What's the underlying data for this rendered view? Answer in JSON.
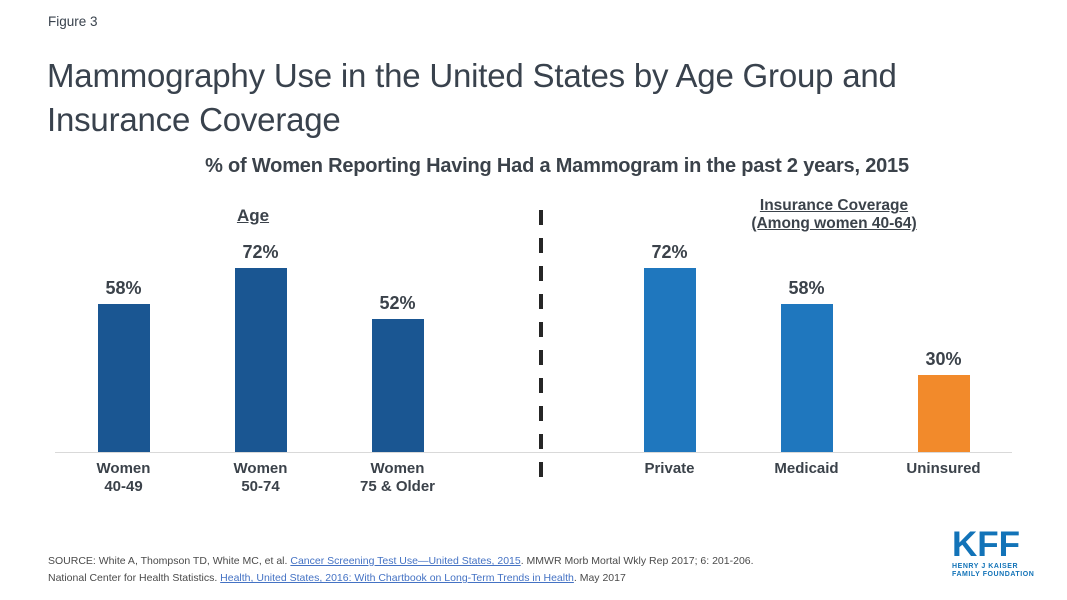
{
  "figure_label": "Figure 3",
  "title": "Mammography Use in the United States by Age Group and Insurance Coverage",
  "chart_data": {
    "type": "bar",
    "title": "% of Women Reporting Having Had a Mammogram in the past 2 years, 2015",
    "unit": "%",
    "ylim": [
      0,
      100
    ],
    "axis_visible": false,
    "legend": "none",
    "groups": [
      {
        "header": "Age",
        "header_lines": [
          "Age"
        ],
        "categories": [
          "Women 40-49",
          "Women 50-74",
          "Women 75 & Older"
        ],
        "values": [
          58,
          72,
          52
        ],
        "bars": [
          {
            "label": "Women\n40-49",
            "value": 58,
            "color": "#1A5692"
          },
          {
            "label": "Women\n50-74",
            "value": 72,
            "color": "#1A5692"
          },
          {
            "label": "Women\n75 & Older",
            "value": 52,
            "color": "#1A5692"
          }
        ]
      },
      {
        "header": "Insurance Coverage (Among women 40-64)",
        "header_lines": [
          "Insurance Coverage",
          "(Among women 40-64)"
        ],
        "categories": [
          "Private",
          "Medicaid",
          "Uninsured"
        ],
        "values": [
          72,
          58,
          30
        ],
        "bars": [
          {
            "label": "Private",
            "value": 72,
            "color": "#1F77BE"
          },
          {
            "label": "Medicaid",
            "value": 58,
            "color": "#1F77BE"
          },
          {
            "label": "Uninsured",
            "value": 30,
            "color": "#F28A2B"
          }
        ]
      }
    ]
  },
  "source": {
    "line1_prefix": "SOURCE: White A, Thompson TD, White MC, et al. ",
    "line1_link": "Cancer Screening Test Use—United States, 2015",
    "line1_suffix": ". MMWR Morb Mortal Wkly Rep 2017; 6: 201-206.",
    "line2_prefix": "National Center for Health Statistics. ",
    "line2_link": "Health, United States, 2016: With Chartbook on Long-Term Trends in Health",
    "line2_suffix": ". May 2017"
  },
  "logo": {
    "acronym": "KFF",
    "tagline_line1": "HENRY J KAISER",
    "tagline_line2": "FAMILY FOUNDATION"
  },
  "colors": {
    "dark_blue": "#1A5692",
    "light_blue": "#1F77BE",
    "orange": "#F28A2B",
    "title_text": "#39424D",
    "axis_line": "#D9D9D9",
    "link_blue": "#4472C4",
    "kff_blue": "#1273B8"
  }
}
